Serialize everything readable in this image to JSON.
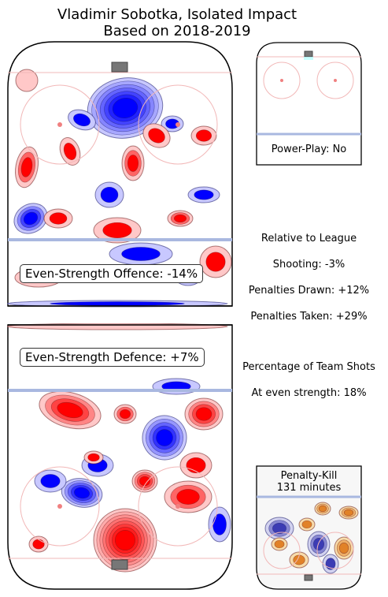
{
  "chart_data": [
    {
      "type": "heatmap",
      "title": "Vladimir Sobotka, Isolated Impact",
      "subtitle": "Based on 2018-2019",
      "panels": [
        {
          "name": "Even-Strength Offence",
          "label": "Even-Strength Offence: -14%",
          "value_pct": -14
        },
        {
          "name": "Even-Strength Defence",
          "label": "Even-Strength Defence: +7%",
          "value_pct": 7
        },
        {
          "name": "Power-Play",
          "label": "Power-Play: No"
        },
        {
          "name": "Penalty-Kill",
          "label": "Penalty-Kill",
          "minutes_label": "131 minutes",
          "minutes": 131
        }
      ],
      "relative_to_league": {
        "heading": "Relative to League",
        "shooting": "Shooting: -3%",
        "penalties_drawn": "Penalties Drawn: +12%",
        "penalties_taken": "Penalties Taken: +29%"
      },
      "team_shots": {
        "heading": "Percentage of Team Shots",
        "even_strength": "At even strength: 18%"
      },
      "colors": {
        "positive": "#ff0000",
        "negative": "#0000ff",
        "pk_positive": "#e8932a",
        "pk_negative": "#3a3ab8"
      }
    }
  ]
}
